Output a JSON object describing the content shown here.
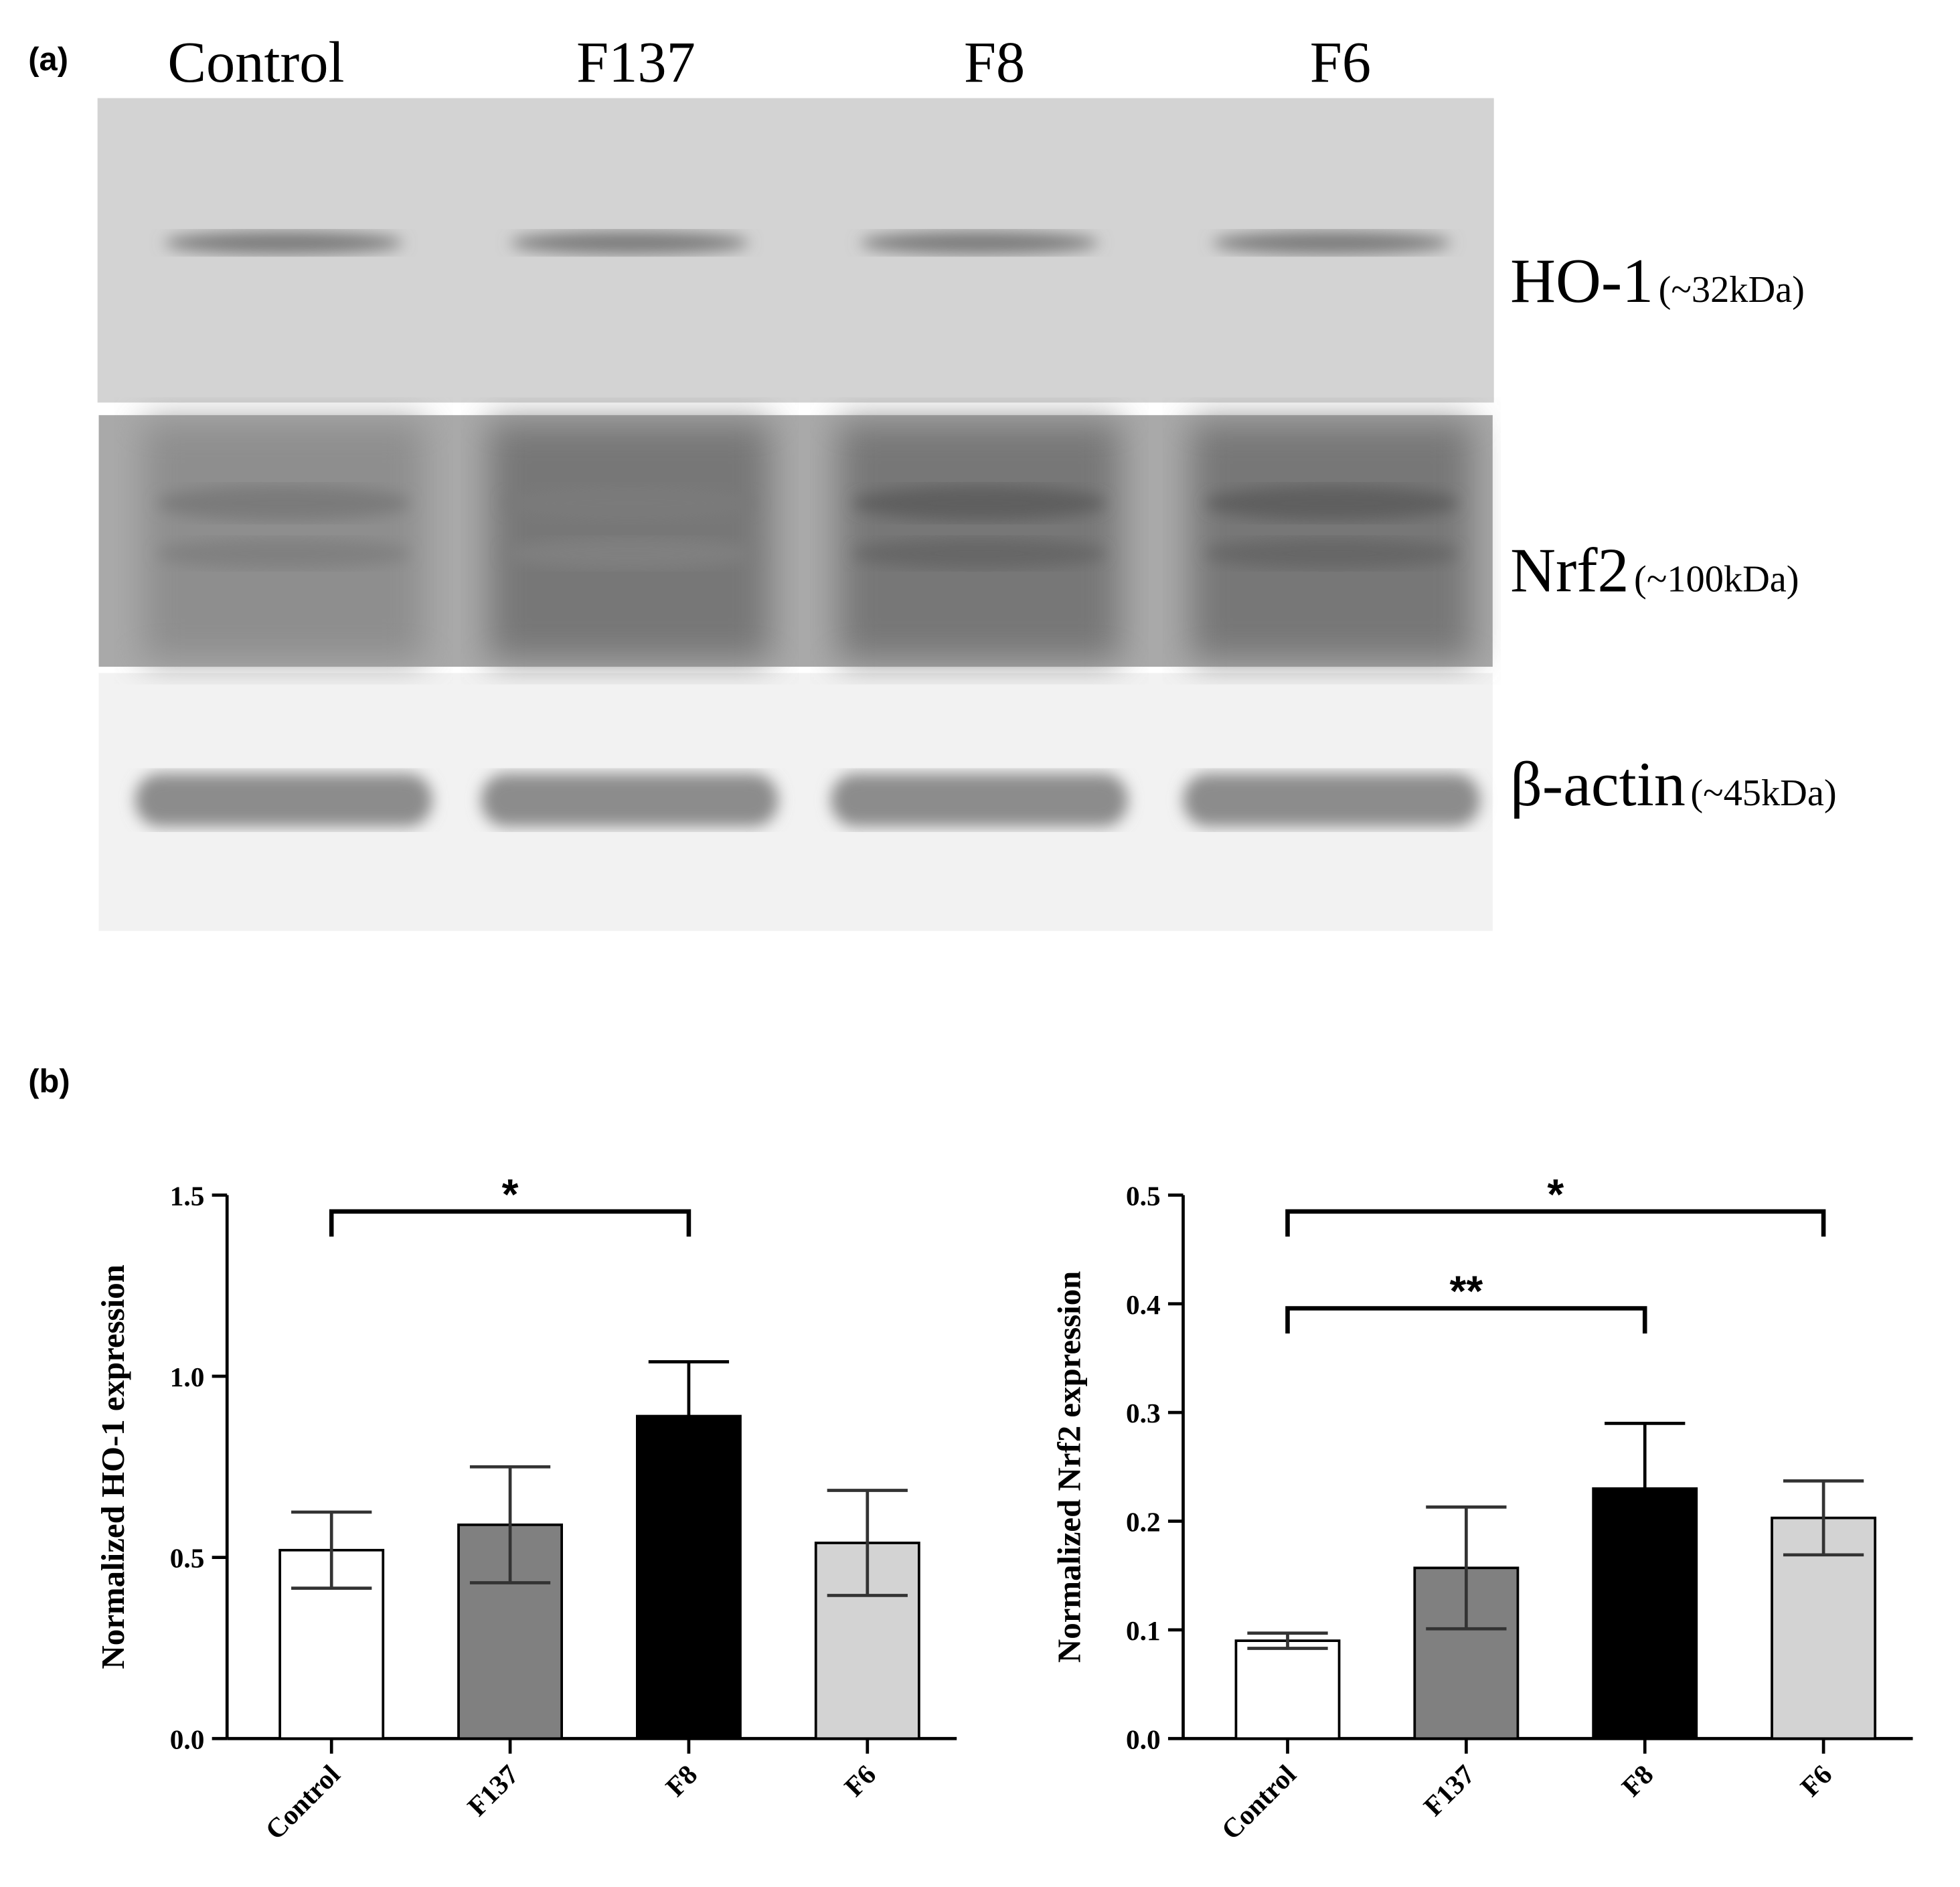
{
  "blot": {
    "panel_label": "(a)",
    "lanes": [
      "Control",
      "F137",
      "F8",
      "F6"
    ],
    "proteins": [
      {
        "name": "HO-1",
        "size": "(~32kDa)"
      },
      {
        "name": "Nrf2",
        "size": "(~100kDa)"
      },
      {
        "name": "β-actin",
        "size": "(~45kDa)"
      }
    ]
  },
  "panel_b_label": "(b)",
  "chart_data": [
    {
      "type": "bar",
      "y_label": "Normalized  HO-1 expression",
      "categories": [
        "Control",
        "F137",
        "F8",
        "F6"
      ],
      "values": [
        0.52,
        0.59,
        0.89,
        0.54
      ],
      "errors": [
        0.105,
        0.16,
        0.15,
        0.145
      ],
      "colors": [
        "#ffffff",
        "#808080",
        "#000000",
        "#d3d3d3"
      ],
      "ylim": [
        0,
        1.5
      ],
      "yticks": [
        {
          "value": 0,
          "label": "0.0"
        },
        0.5,
        {
          "value": 1,
          "label": "1.0"
        },
        1.5
      ],
      "annotations": [
        {
          "text": "*",
          "from": "Control",
          "to": "F8"
        }
      ]
    },
    {
      "type": "bar",
      "y_label": "Normalized  Nrf2 expression",
      "categories": [
        "Control",
        "F137",
        "F8",
        "F6"
      ],
      "values": [
        0.09,
        0.157,
        0.23,
        0.203
      ],
      "errors": [
        0.007,
        0.056,
        0.06,
        0.034
      ],
      "colors": [
        "#ffffff",
        "#808080",
        "#000000",
        "#d3d3d3"
      ],
      "ylim": [
        0,
        0.5
      ],
      "yticks": [
        {
          "value": 0,
          "label": "0.0"
        },
        0.1,
        0.2,
        0.3,
        0.4,
        0.5
      ],
      "annotations": [
        {
          "text": "*",
          "from": "Control",
          "to": "F6"
        },
        {
          "text": "**",
          "from": "Control",
          "to": "F8"
        }
      ]
    }
  ]
}
